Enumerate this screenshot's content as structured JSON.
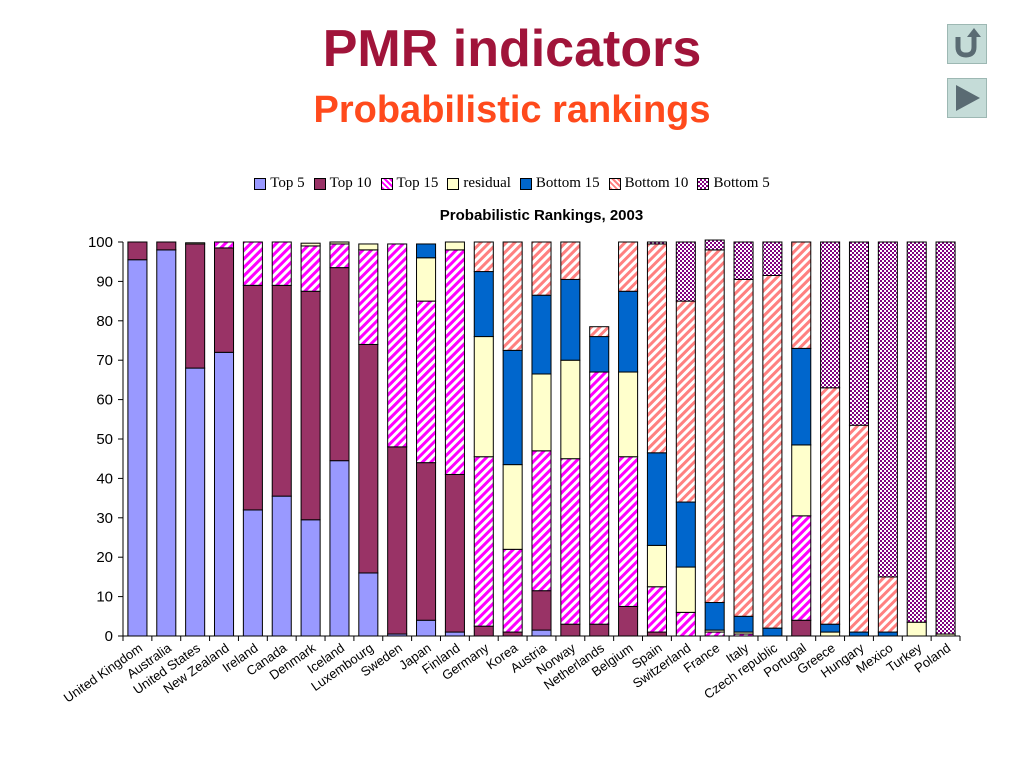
{
  "slide": {
    "title": "PMR indicators",
    "subtitle": "Probabilistic rankings",
    "nav": {
      "return_icon": "return-icon",
      "next_icon": "play-next-icon"
    }
  },
  "chart_data": {
    "type": "bar",
    "stacked": true,
    "title": "Probabilistic Rankings, 2003",
    "xlabel": "",
    "ylabel": "",
    "ylim": [
      0,
      100
    ],
    "yticks": [
      0,
      10,
      20,
      30,
      40,
      50,
      60,
      70,
      80,
      90,
      100
    ],
    "legend_position": "top",
    "categories": [
      "United Kingdom",
      "Australia",
      "United States",
      "New Zealand",
      "Ireland",
      "Canada",
      "Denmark",
      "Iceland",
      "Luxembourg",
      "Sweden",
      "Japan",
      "Finland",
      "Germany",
      "Korea",
      "Austria",
      "Norway",
      "Netherlands",
      "Belgium",
      "Spain",
      "Switzerland",
      "France",
      "Italy",
      "Czech republic",
      "Portugal",
      "Greece",
      "Hungary",
      "Mexico",
      "Turkey",
      "Poland"
    ],
    "series": [
      {
        "name": "Top 5",
        "color": "#9999ff",
        "pattern": "solid",
        "values": [
          95.5,
          98,
          68,
          72,
          32,
          35.5,
          29.5,
          44.5,
          16,
          0.5,
          4,
          1,
          0,
          0,
          1.5,
          0,
          0,
          0,
          0,
          0,
          0,
          0,
          0,
          0,
          0,
          0,
          0,
          0,
          0
        ]
      },
      {
        "name": "Top 10",
        "color": "#993366",
        "pattern": "solid",
        "values": [
          4.5,
          2,
          31.5,
          26.5,
          57,
          53.5,
          58,
          49,
          58,
          47.5,
          40,
          40,
          2.5,
          1,
          10,
          3,
          3,
          7.5,
          1,
          0,
          0,
          0,
          0,
          4,
          0,
          0,
          0,
          0,
          0
        ]
      },
      {
        "name": "Top 15",
        "color": "#ff00ff",
        "pattern": "diagonal",
        "values": [
          0,
          0,
          0,
          1.5,
          11,
          11,
          11.5,
          6,
          24,
          51.5,
          41,
          57,
          43,
          21,
          35.5,
          42,
          64,
          38,
          11.5,
          6,
          1,
          0.5,
          0,
          26.5,
          0,
          0,
          0,
          0,
          0
        ]
      },
      {
        "name": "residual",
        "color": "#ffffcc",
        "pattern": "solid",
        "values": [
          0,
          0,
          0.3,
          0,
          0,
          0,
          0.7,
          0.5,
          1.5,
          0,
          11,
          2,
          30.5,
          21.5,
          19.5,
          25,
          0,
          21.5,
          10.5,
          11.5,
          0.5,
          0.5,
          0,
          18,
          1,
          0,
          0,
          3.5,
          0.5
        ]
      },
      {
        "name": "Bottom 15",
        "color": "#0066cc",
        "pattern": "solid",
        "values": [
          0,
          0,
          0,
          0,
          0,
          0,
          0,
          0,
          0,
          0,
          3.5,
          0,
          16.5,
          29,
          20,
          20.5,
          9,
          20.5,
          23.5,
          16.5,
          7,
          4,
          2,
          24.5,
          2,
          1,
          1,
          0,
          0
        ]
      },
      {
        "name": "Bottom 10",
        "color": "#ff8080",
        "pattern": "diagonal",
        "values": [
          0,
          0,
          0,
          0,
          0,
          0,
          0,
          0,
          0,
          0,
          0,
          0,
          7.5,
          27.5,
          13.5,
          9.5,
          2.5,
          12.5,
          53,
          51,
          89.5,
          85.5,
          89.5,
          27,
          60,
          52.5,
          14,
          0,
          0
        ]
      },
      {
        "name": "Bottom 5",
        "color": "#800080",
        "pattern": "checker",
        "values": [
          0,
          0,
          0,
          0,
          0,
          0,
          0,
          0,
          0,
          0,
          0,
          0,
          0,
          0,
          0,
          0,
          0,
          0,
          0.5,
          15,
          2.5,
          9.5,
          8.5,
          0,
          37,
          46.5,
          85,
          96.5,
          99.5
        ]
      }
    ]
  }
}
